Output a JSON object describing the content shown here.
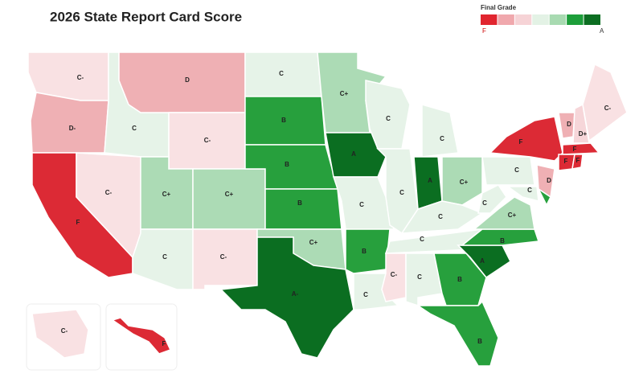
{
  "header": {
    "title": "2026 State Report Card Score"
  },
  "legend": {
    "title": "Final Grade",
    "colors": [
      "#e1252f",
      "#f0a8ad",
      "#f6d3d6",
      "#e3f2e5",
      "#a8dab1",
      "#1d9e3a",
      "#0c6e22"
    ],
    "low_label": "F",
    "high_label": "A"
  },
  "states": [
    {
      "grade": "C-",
      "color": "#f9e1e3"
    },
    {
      "grade": "D-",
      "color": "#efb0b4"
    },
    {
      "grade": "F",
      "color": "#dc2a35"
    },
    {
      "grade": "C",
      "color": "#e6f3e8"
    },
    {
      "grade": "C-",
      "color": "#f9e1e3"
    },
    {
      "grade": "D",
      "color": "#efb0b4"
    },
    {
      "grade": "C-",
      "color": "#f9e1e3"
    },
    {
      "grade": "C+",
      "color": "#acdbb5"
    },
    {
      "grade": "C+",
      "color": "#acdbb5"
    },
    {
      "grade": "C",
      "color": "#e6f3e8"
    },
    {
      "grade": "C-",
      "color": "#f9e1e3"
    },
    {
      "grade": "C",
      "color": "#e6f3e8"
    },
    {
      "grade": "B",
      "color": "#27a03d"
    },
    {
      "grade": "B",
      "color": "#27a03d"
    },
    {
      "grade": "B",
      "color": "#27a03d"
    },
    {
      "grade": "C+",
      "color": "#acdbb5"
    },
    {
      "grade": "A-",
      "color": "#0b6e21"
    },
    {
      "grade": "C+",
      "color": "#acdbb5"
    },
    {
      "grade": "A",
      "color": "#0b6e21"
    },
    {
      "grade": "C",
      "color": "#e6f3e8"
    },
    {
      "grade": "B",
      "color": "#27a03d"
    },
    {
      "grade": "C",
      "color": "#e6f3e8"
    },
    {
      "grade": "C",
      "color": "#e6f3e8"
    },
    {
      "grade": "C",
      "color": "#e6f3e8"
    },
    {
      "grade": "C",
      "color": "#e6f3e8"
    },
    {
      "grade": "A",
      "color": "#0b6e21"
    },
    {
      "grade": "C+",
      "color": "#acdbb5"
    },
    {
      "grade": "C",
      "color": "#e6f3e8"
    },
    {
      "grade": "C",
      "color": "#e6f3e8"
    },
    {
      "grade": "C-",
      "color": "#f9e1e3"
    },
    {
      "grade": "C",
      "color": "#e6f3e8"
    },
    {
      "grade": "B",
      "color": "#27a03d"
    },
    {
      "grade": "B",
      "color": "#27a03d"
    },
    {
      "grade": "A",
      "color": "#0b6e21"
    },
    {
      "grade": "B",
      "color": "#27a03d"
    },
    {
      "grade": "C+",
      "color": "#acdbb5"
    },
    {
      "grade": "C",
      "color": "#e6f3e8"
    },
    {
      "grade": "C",
      "color": "#e6f3e8"
    },
    {
      "grade": "F",
      "color": "#dc2a35"
    },
    {
      "grade": "D",
      "color": "#efb0b4"
    },
    {
      "grade": null,
      "color": "#27a03d"
    },
    {
      "grade": "C",
      "color": "#e6f3e8"
    },
    {
      "grade": "D",
      "color": "#efb0b4"
    },
    {
      "grade": "D+",
      "color": "#f6d6d9"
    },
    {
      "grade": "C-",
      "color": "#f9e1e3"
    },
    {
      "grade": "F",
      "color": "#dc2a35"
    },
    {
      "grade": "F",
      "color": "#dc2a35"
    },
    {
      "grade": "F",
      "color": "#dc2a35"
    },
    {
      "grade": "C-",
      "color": "#f9e1e3"
    },
    {
      "grade": "F",
      "color": "#dc2a35"
    }
  ]
}
